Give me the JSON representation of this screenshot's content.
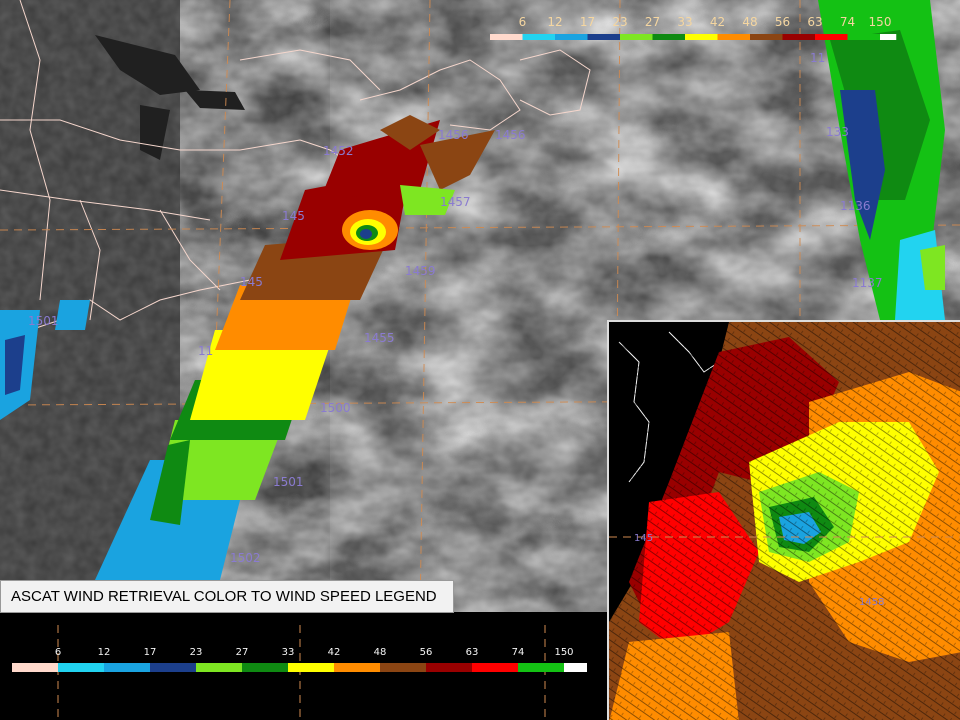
{
  "legend": {
    "title": "ASCAT WIND RETRIEVAL COLOR TO WIND SPEED LEGEND",
    "levels": [
      {
        "label": "6",
        "color": "#ffd9cc"
      },
      {
        "label": "12",
        "color": "#22d3f0"
      },
      {
        "label": "17",
        "color": "#1aa3e0"
      },
      {
        "label": "23",
        "color": "#1c3f8c"
      },
      {
        "label": "27",
        "color": "#7ee622"
      },
      {
        "label": "33",
        "color": "#0f8a12"
      },
      {
        "label": "42",
        "color": "#ffff00"
      },
      {
        "label": "48",
        "color": "#ff8c00"
      },
      {
        "label": "56",
        "color": "#8b4513"
      },
      {
        "label": "63",
        "color": "#990000"
      },
      {
        "label": "74",
        "color": "#ff0000"
      },
      {
        "label": "150",
        "color": "#14c114"
      }
    ]
  },
  "top_legend_labels": [
    "6",
    "12",
    "17",
    "23",
    "27",
    "33",
    "42",
    "48",
    "56",
    "63",
    "74",
    "150"
  ],
  "overlay_labels": {
    "main": [
      "1452",
      "1456",
      "1457",
      "1456",
      "145",
      "1459",
      "145",
      "1455",
      "1500",
      "1501",
      "1502",
      "1501",
      "11"
    ],
    "east": [
      "11",
      "133",
      "1136",
      "1137"
    ],
    "inset": [
      "145",
      "1458"
    ]
  }
}
